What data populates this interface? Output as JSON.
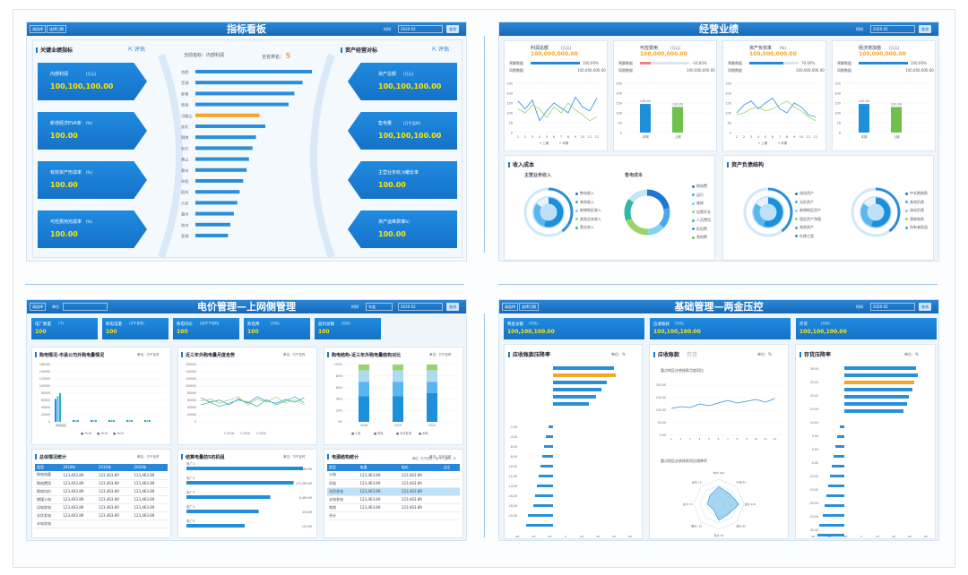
{
  "p1": {
    "title": "指标看板",
    "filter1": "请选择",
    "filter2": "选择日期",
    "time_label": "时间",
    "time": "2020-02",
    "query": "查询",
    "left_title": "关键业绩指标",
    "right_title": "资产经营对标",
    "eval": "评估",
    "left_kpis": [
      {
        "name": "内部利润",
        "unit": "(万元)",
        "value": "100,100,100.00"
      },
      {
        "name": "新增经济EVA率",
        "unit": "(%)",
        "value": "100.00"
      },
      {
        "name": "有效资产形成率",
        "unit": "(%)",
        "value": "100.00"
      },
      {
        "name": "可控费用完成率",
        "unit": "(%)",
        "value": "100.00"
      }
    ],
    "right_kpis": [
      {
        "name": "资产总额",
        "unit": "(万元)",
        "value": "100,100,100.00"
      },
      {
        "name": "售电量",
        "unit": "(万千瓦时)",
        "value": "100,100,100.00"
      },
      {
        "name": "主营业务收入增长率",
        "unit": "(%)",
        "value": "100.00"
      },
      {
        "name": "资产运维费率",
        "unit": "(%)",
        "value": "100.00"
      }
    ],
    "center_label": "当前指标：",
    "center_value": "内部利润",
    "rank_label": "全省排名：",
    "rank_value": "5",
    "cities": [
      "合肥",
      "芜湖",
      "蚌埠",
      "淮南",
      "马鞍山",
      "淮北",
      "铜陵",
      "安庆",
      "黄山",
      "滁州",
      "阜阳",
      "宿州",
      "六安",
      "亳州",
      "池州",
      "宣城"
    ],
    "city_values": [
      100,
      92,
      85,
      80,
      55,
      60,
      52,
      49,
      46,
      44,
      41,
      38,
      36,
      33,
      30,
      28
    ],
    "highlight_index": 4
  },
  "p2": {
    "title": "经营业绩",
    "time_label": "时间",
    "time": "2020-02",
    "query": "查询",
    "kpis": [
      {
        "name": "利润总额",
        "unit": "(万元)",
        "value": "100,000,000.00",
        "r1": "100.00%",
        "r2": "100,000,000.00"
      },
      {
        "name": "可控费用",
        "unit": "(万元)",
        "value": "100,000,000.00",
        "r1": "-10.00%",
        "r2": "100,000,000.00"
      },
      {
        "name": "资产负债率",
        "unit": "(%)",
        "value": "100,000,000.00",
        "r1": "70.00%",
        "r2": "100,000,000.00"
      },
      {
        "name": "经济增加值",
        "unit": "(万元)",
        "value": "100,000,000.00",
        "r1": "100.00%",
        "r2": "100,000,000.00"
      }
    ],
    "row_labels": [
      "预算数据",
      "同期数据"
    ],
    "line_y": [
      "250",
      "200",
      "150",
      "100",
      "50",
      "0"
    ],
    "x12": [
      "1",
      "2",
      "3",
      "4",
      "5",
      "6",
      "7",
      "8",
      "9",
      "10",
      "11",
      "12"
    ],
    "legend_line": [
      "上期",
      "本期"
    ],
    "bar_labels": [
      "本期",
      "上期"
    ],
    "bar_values": [
      "145.00",
      "130.00"
    ],
    "income_title": "收入成本",
    "income_left": "主营业务收入",
    "income_right": "售电成本",
    "income_left_legend": [
      "售电收入",
      "其他收入",
      "新增地区收入",
      "其他业务收入",
      "营业收入"
    ],
    "income_right_legend": [
      "购电费",
      "运行",
      "维修",
      "自营开支",
      "人员费用",
      "折旧费",
      "其他费"
    ],
    "asset_title": "资产负债结构",
    "asset_left_legend": [
      "流动资产",
      "无形资产",
      "新增地区资产",
      "固定资产净值",
      "其他资产",
      "在建工程"
    ],
    "asset_right_legend": [
      "中长期借款",
      "其他负债",
      "流动负债",
      "预收账款",
      "所有者权益"
    ]
  },
  "p3": {
    "title": "电价管理—上网侧管理",
    "f1": "请选择",
    "f2": "单位",
    "time_label": "时间",
    "period": "年度",
    "time": "2020-02",
    "query": "查询",
    "kpis": [
      {
        "name": "电厂数量",
        "unit": "(个)",
        "value": "100"
      },
      {
        "name": "购电电量",
        "unit": "(万千瓦时)",
        "value": "100"
      },
      {
        "name": "购电均价",
        "unit": "(元/千千瓦时)",
        "value": "100"
      },
      {
        "name": "购电费",
        "unit": "(万元)",
        "value": "100"
      },
      {
        "name": "盈利总额",
        "unit": "(万元)",
        "value": "100"
      }
    ],
    "c1": "购电情况-市县公司外购电量情况",
    "c2": "近三年外购电量月度走势",
    "c3": "购电结构-近三年外购电量结构对比",
    "unit_kwh": "单位：万千瓦时",
    "c1_y": [
      "160000",
      "140000",
      "120000",
      "100000",
      "80000",
      "60000",
      "40000",
      "20000",
      "0"
    ],
    "c1_cats": [
      "黄岩地区",
      "",
      "",
      "",
      "",
      ""
    ],
    "c1_legend": [
      "2018",
      "2019",
      "2020"
    ],
    "c2_y": [
      "160000",
      "140000",
      "120000",
      "100000",
      "80000",
      "60000",
      "40000",
      "20000",
      "0"
    ],
    "c2_legend": [
      "2018",
      "2019",
      "2020"
    ],
    "c3_y": [
      "100%",
      "80%",
      "60%",
      "40%",
      "20%",
      "0%"
    ],
    "c3_cats": [
      "2018",
      "2019",
      "2020"
    ],
    "c3_legend": [
      "火电",
      "风电",
      "光伏发电",
      "水电"
    ],
    "t1": "总体情况统计",
    "t2": "结算电量前5的机组",
    "t3": "电源结构统计",
    "unit_wan": "单位：万千瓦时",
    "t1_head": [
      "类型",
      "2018年",
      "2019年",
      "2020年"
    ],
    "t1_rows": [
      [
        "购电电量",
        "123,463.89",
        "123,463.89",
        "123,463.89"
      ],
      [
        "购电费用",
        "123,463.89",
        "123,463.89",
        "123,463.89"
      ],
      [
        "购电均价",
        "123,463.89",
        "123,463.89",
        "123,463.89"
      ],
      [
        "燃煤火电",
        "123,463.89",
        "123,463.89",
        "123,463.89"
      ],
      [
        "风电发电",
        "123,463.89",
        "123,463.89",
        "123,463.89"
      ],
      [
        "光伏发电",
        "123,463.89",
        "123,463.89",
        "123,463.89"
      ],
      [
        "水电发电",
        "",
        "",
        " "
      ]
    ],
    "t2_names": [
      "电厂1",
      "电厂2",
      "电厂3",
      "电厂4",
      "电厂5"
    ],
    "t2_vals": [
      "123,463.89",
      "123,463.89",
      "6,463.89",
      "432.89",
      "123.89"
    ],
    "t2_pct": [
      100,
      92,
      72,
      62,
      50
    ],
    "t3_head": [
      "类型",
      "电量",
      "电价",
      "占比"
    ],
    "t3_unit": "单位：万千瓦时，元/千千瓦时，%",
    "t3_rows": [
      [
        "火电",
        "123,463.89",
        "123,463.89",
        ""
      ],
      [
        "风电",
        "123,463.89",
        "123,463.89",
        ""
      ],
      [
        "光伏发电",
        "123,463.89",
        "123,463.89",
        ""
      ],
      [
        "水电发电",
        "123,463.89",
        "123,463.89",
        ""
      ],
      [
        "其他",
        "123,463.89",
        "123,463.89",
        ""
      ],
      [
        "合计",
        "",
        "",
        ""
      ]
    ]
  },
  "p4": {
    "title": "基础管理—两金压控",
    "f1": "请选择",
    "f2": "选择日期",
    "time_label": "时间",
    "time": "2020-02",
    "query": "查询",
    "kpis": [
      {
        "name": "两金总额",
        "unit": "(万元)",
        "value": "100,100,100.00"
      },
      {
        "name": "应收账款",
        "unit": "(万元)",
        "value": "100,100,100.00"
      },
      {
        "name": "存货",
        "unit": "(万元)",
        "value": "100,100,100.00"
      }
    ],
    "c1": "应收账款压降率",
    "c2": "应收账款",
    "c2b": "存货",
    "c3": "存货压降率",
    "unit_pct": "单位：%",
    "c2_sub1": "重点地区应收账款月度同比",
    "c2_sub2": "重点地区应收账款同比增降率",
    "c2_y": [
      "200.00",
      "150.00",
      "100.00",
      "50.00",
      "0.00"
    ],
    "radar": [
      "杭州 100",
      "宁波 89",
      "温州 120",
      "绍兴 80",
      "丽水 99",
      "衢州 -30",
      "台州 13",
      "金华 18"
    ],
    "x_axis": [
      "-60",
      "-40",
      "-20",
      "0",
      "20",
      "40",
      "60",
      "80"
    ],
    "neg_ticks": [
      "-2.00",
      "-4.00",
      "-6.00",
      "-8.00",
      "-10.00",
      "-12.00",
      "-14.00",
      "-16.00",
      "-18.00",
      "-20.00"
    ],
    "c3_y": [
      "30.00",
      "25.00",
      "20.00",
      "15.00",
      "10.00",
      "5.00",
      "0.00",
      "-5.00",
      "-10.00",
      "-15.00",
      "-20.00",
      "-25.00",
      "-30.00"
    ]
  }
}
